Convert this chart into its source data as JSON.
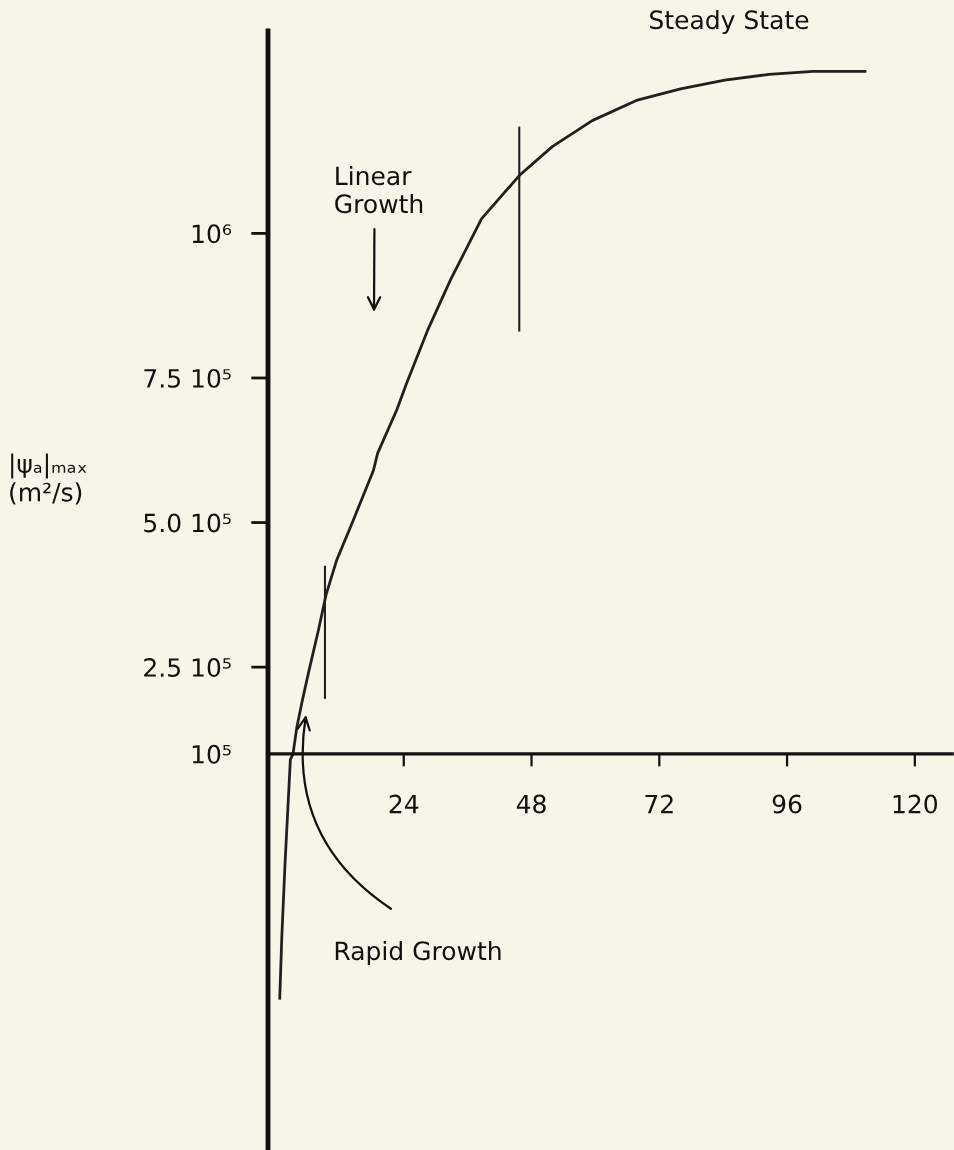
{
  "chart_data": {
    "type": "line",
    "ylabel": "|ψₐ|ₘₐₓ\n(m²/s)",
    "x": [
      0.7,
      1.1,
      1.7,
      2.7,
      3.2,
      3.9,
      4.9,
      6.1,
      8.0,
      9.4,
      11.4,
      13.9,
      18.3,
      19.1,
      22.7,
      24.5,
      28.6,
      32.8,
      38.6,
      45.7,
      51.9,
      59.4,
      67.7,
      76.0,
      84.3,
      92.6,
      100.9,
      110.9
    ],
    "series": [
      {
        "color": "#231f20",
        "values": [
          -325000,
          -215000,
          -90000,
          90000,
          100000,
          145000,
          190000,
          240000,
          315000,
          375000,
          435000,
          490000,
          590000,
          620000,
          695000,
          740000,
          835000,
          920000,
          1025000,
          1100000,
          1150000,
          1195000,
          1230000,
          1250000,
          1265000,
          1275000,
          1280000,
          1280000
        ]
      }
    ],
    "ref_lines": [
      {
        "axis": "x",
        "value": 9.2
      },
      {
        "axis": "x",
        "value": 45.7
      }
    ],
    "xlim": [
      -1.5,
      127
    ],
    "xticks": [
      24,
      48,
      72,
      96,
      120
    ],
    "ylim": [
      -585000,
      1350000
    ],
    "yticks": [
      {
        "value": 100000,
        "label": "10⁵"
      },
      {
        "value": 250000,
        "label": "2.5 10⁵"
      },
      {
        "value": 500000,
        "label": "5.0 10⁵"
      },
      {
        "value": 750000,
        "label": "7.5 10⁵"
      },
      {
        "value": 1000000,
        "label": "10⁶"
      }
    ],
    "annotations": [
      "Linear\nGrowth",
      "Rapid Growth",
      "Steady State"
    ]
  }
}
